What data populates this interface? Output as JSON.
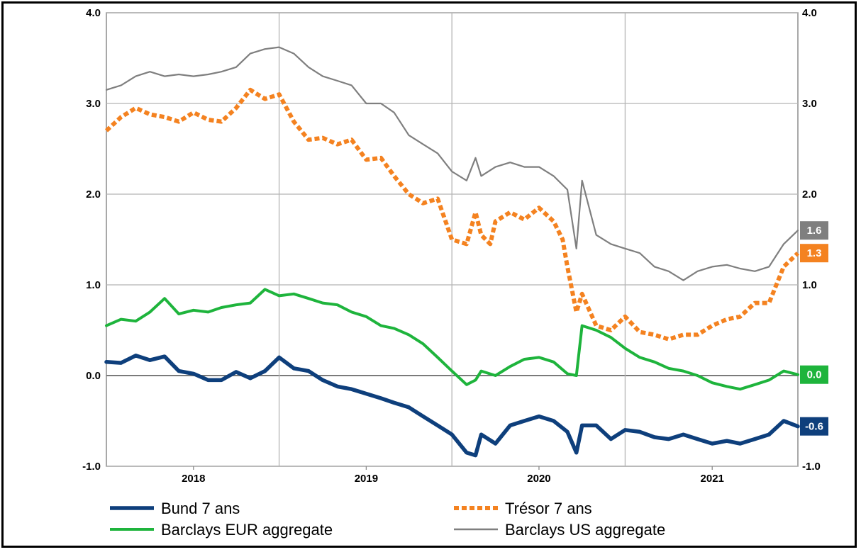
{
  "chart_data": {
    "type": "line",
    "title": "",
    "xlabel": "",
    "ylabel": "",
    "ylim": [
      -1.0,
      4.0
    ],
    "y_ticks": [
      "-1.0",
      "0.0",
      "1.0",
      "2.0",
      "3.0",
      "4.0"
    ],
    "y_ticks_right": [
      "-1.0",
      "0.0",
      "1.0",
      "2.0",
      "3.0",
      "4.0"
    ],
    "x_range": [
      "2017-07-01",
      "2021-07-01"
    ],
    "x_ticks": [
      {
        "label": "2018",
        "date": "2018-01-01"
      },
      {
        "label": "2019",
        "date": "2019-01-01"
      },
      {
        "label": "2020",
        "date": "2020-01-01"
      },
      {
        "label": "2021",
        "date": "2021-01-01"
      }
    ],
    "x_gridlines": [
      "2018-07-01",
      "2019-07-01",
      "2020-07-01"
    ],
    "grid": true,
    "legend_position": "bottom",
    "series": [
      {
        "name": "Bund 7 ans",
        "color": "#0e3f7c",
        "style": "thick",
        "last_label": "-0.6",
        "points": [
          [
            "2017-07-01",
            0.15
          ],
          [
            "2017-08-01",
            0.14
          ],
          [
            "2017-09-01",
            0.22
          ],
          [
            "2017-10-01",
            0.17
          ],
          [
            "2017-11-01",
            0.21
          ],
          [
            "2017-12-01",
            0.05
          ],
          [
            "2018-01-01",
            0.02
          ],
          [
            "2018-02-01",
            -0.05
          ],
          [
            "2018-03-01",
            -0.05
          ],
          [
            "2018-04-01",
            0.04
          ],
          [
            "2018-05-01",
            -0.03
          ],
          [
            "2018-06-01",
            0.05
          ],
          [
            "2018-07-01",
            0.2
          ],
          [
            "2018-08-01",
            0.08
          ],
          [
            "2018-09-01",
            0.05
          ],
          [
            "2018-10-01",
            -0.05
          ],
          [
            "2018-11-01",
            -0.12
          ],
          [
            "2018-12-01",
            -0.15
          ],
          [
            "2019-01-01",
            -0.2
          ],
          [
            "2019-02-01",
            -0.25
          ],
          [
            "2019-03-01",
            -0.3
          ],
          [
            "2019-04-01",
            -0.35
          ],
          [
            "2019-05-01",
            -0.45
          ],
          [
            "2019-06-01",
            -0.55
          ],
          [
            "2019-07-01",
            -0.65
          ],
          [
            "2019-08-01",
            -0.85
          ],
          [
            "2019-08-20",
            -0.88
          ],
          [
            "2019-09-01",
            -0.65
          ],
          [
            "2019-10-01",
            -0.75
          ],
          [
            "2019-11-01",
            -0.55
          ],
          [
            "2019-12-01",
            -0.5
          ],
          [
            "2020-01-01",
            -0.45
          ],
          [
            "2020-02-01",
            -0.5
          ],
          [
            "2020-03-01",
            -0.62
          ],
          [
            "2020-03-20",
            -0.85
          ],
          [
            "2020-04-01",
            -0.55
          ],
          [
            "2020-05-01",
            -0.55
          ],
          [
            "2020-06-01",
            -0.7
          ],
          [
            "2020-07-01",
            -0.6
          ],
          [
            "2020-08-01",
            -0.62
          ],
          [
            "2020-09-01",
            -0.68
          ],
          [
            "2020-10-01",
            -0.7
          ],
          [
            "2020-11-01",
            -0.65
          ],
          [
            "2020-12-01",
            -0.7
          ],
          [
            "2021-01-01",
            -0.75
          ],
          [
            "2021-02-01",
            -0.72
          ],
          [
            "2021-03-01",
            -0.75
          ],
          [
            "2021-04-01",
            -0.7
          ],
          [
            "2021-05-01",
            -0.65
          ],
          [
            "2021-06-01",
            -0.5
          ],
          [
            "2021-07-01",
            -0.56
          ]
        ]
      },
      {
        "name": "Trésor 7 ans",
        "color": "#f48220",
        "style": "dotted",
        "last_label": "1.3",
        "points": [
          [
            "2017-07-01",
            2.7
          ],
          [
            "2017-08-01",
            2.85
          ],
          [
            "2017-09-01",
            2.95
          ],
          [
            "2017-10-01",
            2.88
          ],
          [
            "2017-11-01",
            2.85
          ],
          [
            "2017-12-01",
            2.8
          ],
          [
            "2018-01-01",
            2.9
          ],
          [
            "2018-02-01",
            2.82
          ],
          [
            "2018-03-01",
            2.8
          ],
          [
            "2018-04-01",
            2.95
          ],
          [
            "2018-05-01",
            3.15
          ],
          [
            "2018-06-01",
            3.05
          ],
          [
            "2018-07-01",
            3.1
          ],
          [
            "2018-08-01",
            2.8
          ],
          [
            "2018-09-01",
            2.6
          ],
          [
            "2018-10-01",
            2.62
          ],
          [
            "2018-11-01",
            2.55
          ],
          [
            "2018-12-01",
            2.6
          ],
          [
            "2019-01-01",
            2.38
          ],
          [
            "2019-02-01",
            2.4
          ],
          [
            "2019-03-01",
            2.2
          ],
          [
            "2019-04-01",
            2.0
          ],
          [
            "2019-05-01",
            1.9
          ],
          [
            "2019-06-01",
            1.95
          ],
          [
            "2019-07-01",
            1.5
          ],
          [
            "2019-08-01",
            1.45
          ],
          [
            "2019-08-20",
            1.8
          ],
          [
            "2019-09-01",
            1.55
          ],
          [
            "2019-09-20",
            1.45
          ],
          [
            "2019-10-01",
            1.7
          ],
          [
            "2019-11-01",
            1.8
          ],
          [
            "2019-12-01",
            1.72
          ],
          [
            "2020-01-01",
            1.85
          ],
          [
            "2020-02-01",
            1.7
          ],
          [
            "2020-02-20",
            1.5
          ],
          [
            "2020-03-01",
            1.2
          ],
          [
            "2020-03-20",
            0.7
          ],
          [
            "2020-04-01",
            0.9
          ],
          [
            "2020-05-01",
            0.55
          ],
          [
            "2020-06-01",
            0.5
          ],
          [
            "2020-07-01",
            0.65
          ],
          [
            "2020-08-01",
            0.48
          ],
          [
            "2020-09-01",
            0.45
          ],
          [
            "2020-10-01",
            0.4
          ],
          [
            "2020-11-01",
            0.45
          ],
          [
            "2020-12-01",
            0.45
          ],
          [
            "2021-01-01",
            0.55
          ],
          [
            "2021-02-01",
            0.62
          ],
          [
            "2021-03-01",
            0.65
          ],
          [
            "2021-04-01",
            0.8
          ],
          [
            "2021-05-01",
            0.8
          ],
          [
            "2021-06-01",
            1.2
          ],
          [
            "2021-07-01",
            1.35
          ]
        ]
      },
      {
        "name": "Barclays EUR aggregate",
        "color": "#1eb43c",
        "style": "solid",
        "last_label": "0.0",
        "points": [
          [
            "2017-07-01",
            0.55
          ],
          [
            "2017-08-01",
            0.62
          ],
          [
            "2017-09-01",
            0.6
          ],
          [
            "2017-10-01",
            0.7
          ],
          [
            "2017-11-01",
            0.85
          ],
          [
            "2017-12-01",
            0.68
          ],
          [
            "2018-01-01",
            0.72
          ],
          [
            "2018-02-01",
            0.7
          ],
          [
            "2018-03-01",
            0.75
          ],
          [
            "2018-04-01",
            0.78
          ],
          [
            "2018-05-01",
            0.8
          ],
          [
            "2018-06-01",
            0.95
          ],
          [
            "2018-07-01",
            0.88
          ],
          [
            "2018-08-01",
            0.9
          ],
          [
            "2018-09-01",
            0.85
          ],
          [
            "2018-10-01",
            0.8
          ],
          [
            "2018-11-01",
            0.78
          ],
          [
            "2018-12-01",
            0.7
          ],
          [
            "2019-01-01",
            0.65
          ],
          [
            "2019-02-01",
            0.55
          ],
          [
            "2019-03-01",
            0.52
          ],
          [
            "2019-04-01",
            0.45
          ],
          [
            "2019-05-01",
            0.35
          ],
          [
            "2019-06-01",
            0.2
          ],
          [
            "2019-07-01",
            0.05
          ],
          [
            "2019-08-01",
            -0.1
          ],
          [
            "2019-08-20",
            -0.05
          ],
          [
            "2019-09-01",
            0.05
          ],
          [
            "2019-10-01",
            0.0
          ],
          [
            "2019-11-01",
            0.1
          ],
          [
            "2019-12-01",
            0.18
          ],
          [
            "2020-01-01",
            0.2
          ],
          [
            "2020-02-01",
            0.15
          ],
          [
            "2020-03-01",
            0.02
          ],
          [
            "2020-03-20",
            0.0
          ],
          [
            "2020-04-01",
            0.55
          ],
          [
            "2020-05-01",
            0.5
          ],
          [
            "2020-06-01",
            0.42
          ],
          [
            "2020-07-01",
            0.3
          ],
          [
            "2020-08-01",
            0.2
          ],
          [
            "2020-09-01",
            0.15
          ],
          [
            "2020-10-01",
            0.08
          ],
          [
            "2020-11-01",
            0.05
          ],
          [
            "2020-12-01",
            0.0
          ],
          [
            "2021-01-01",
            -0.08
          ],
          [
            "2021-02-01",
            -0.12
          ],
          [
            "2021-03-01",
            -0.15
          ],
          [
            "2021-04-01",
            -0.1
          ],
          [
            "2021-05-01",
            -0.05
          ],
          [
            "2021-06-01",
            0.05
          ],
          [
            "2021-07-01",
            0.01
          ]
        ]
      },
      {
        "name": "Barclays US aggregate",
        "color": "#7f7f7f",
        "style": "thin",
        "last_label": "1.6",
        "points": [
          [
            "2017-07-01",
            3.15
          ],
          [
            "2017-08-01",
            3.2
          ],
          [
            "2017-09-01",
            3.3
          ],
          [
            "2017-10-01",
            3.35
          ],
          [
            "2017-11-01",
            3.3
          ],
          [
            "2017-12-01",
            3.32
          ],
          [
            "2018-01-01",
            3.3
          ],
          [
            "2018-02-01",
            3.32
          ],
          [
            "2018-03-01",
            3.35
          ],
          [
            "2018-04-01",
            3.4
          ],
          [
            "2018-05-01",
            3.55
          ],
          [
            "2018-06-01",
            3.6
          ],
          [
            "2018-07-01",
            3.62
          ],
          [
            "2018-08-01",
            3.55
          ],
          [
            "2018-09-01",
            3.4
          ],
          [
            "2018-10-01",
            3.3
          ],
          [
            "2018-11-01",
            3.25
          ],
          [
            "2018-12-01",
            3.2
          ],
          [
            "2019-01-01",
            3.0
          ],
          [
            "2019-02-01",
            3.0
          ],
          [
            "2019-03-01",
            2.9
          ],
          [
            "2019-04-01",
            2.65
          ],
          [
            "2019-05-01",
            2.55
          ],
          [
            "2019-06-01",
            2.45
          ],
          [
            "2019-07-01",
            2.25
          ],
          [
            "2019-08-01",
            2.15
          ],
          [
            "2019-08-20",
            2.4
          ],
          [
            "2019-09-01",
            2.2
          ],
          [
            "2019-10-01",
            2.3
          ],
          [
            "2019-11-01",
            2.35
          ],
          [
            "2019-12-01",
            2.3
          ],
          [
            "2020-01-01",
            2.3
          ],
          [
            "2020-02-01",
            2.2
          ],
          [
            "2020-03-01",
            2.05
          ],
          [
            "2020-03-20",
            1.4
          ],
          [
            "2020-04-01",
            2.15
          ],
          [
            "2020-05-01",
            1.55
          ],
          [
            "2020-06-01",
            1.45
          ],
          [
            "2020-07-01",
            1.4
          ],
          [
            "2020-08-01",
            1.35
          ],
          [
            "2020-09-01",
            1.2
          ],
          [
            "2020-10-01",
            1.15
          ],
          [
            "2020-11-01",
            1.05
          ],
          [
            "2020-12-01",
            1.15
          ],
          [
            "2021-01-01",
            1.2
          ],
          [
            "2021-02-01",
            1.22
          ],
          [
            "2021-03-01",
            1.18
          ],
          [
            "2021-04-01",
            1.15
          ],
          [
            "2021-05-01",
            1.2
          ],
          [
            "2021-06-01",
            1.45
          ],
          [
            "2021-07-01",
            1.6
          ]
        ]
      }
    ]
  }
}
